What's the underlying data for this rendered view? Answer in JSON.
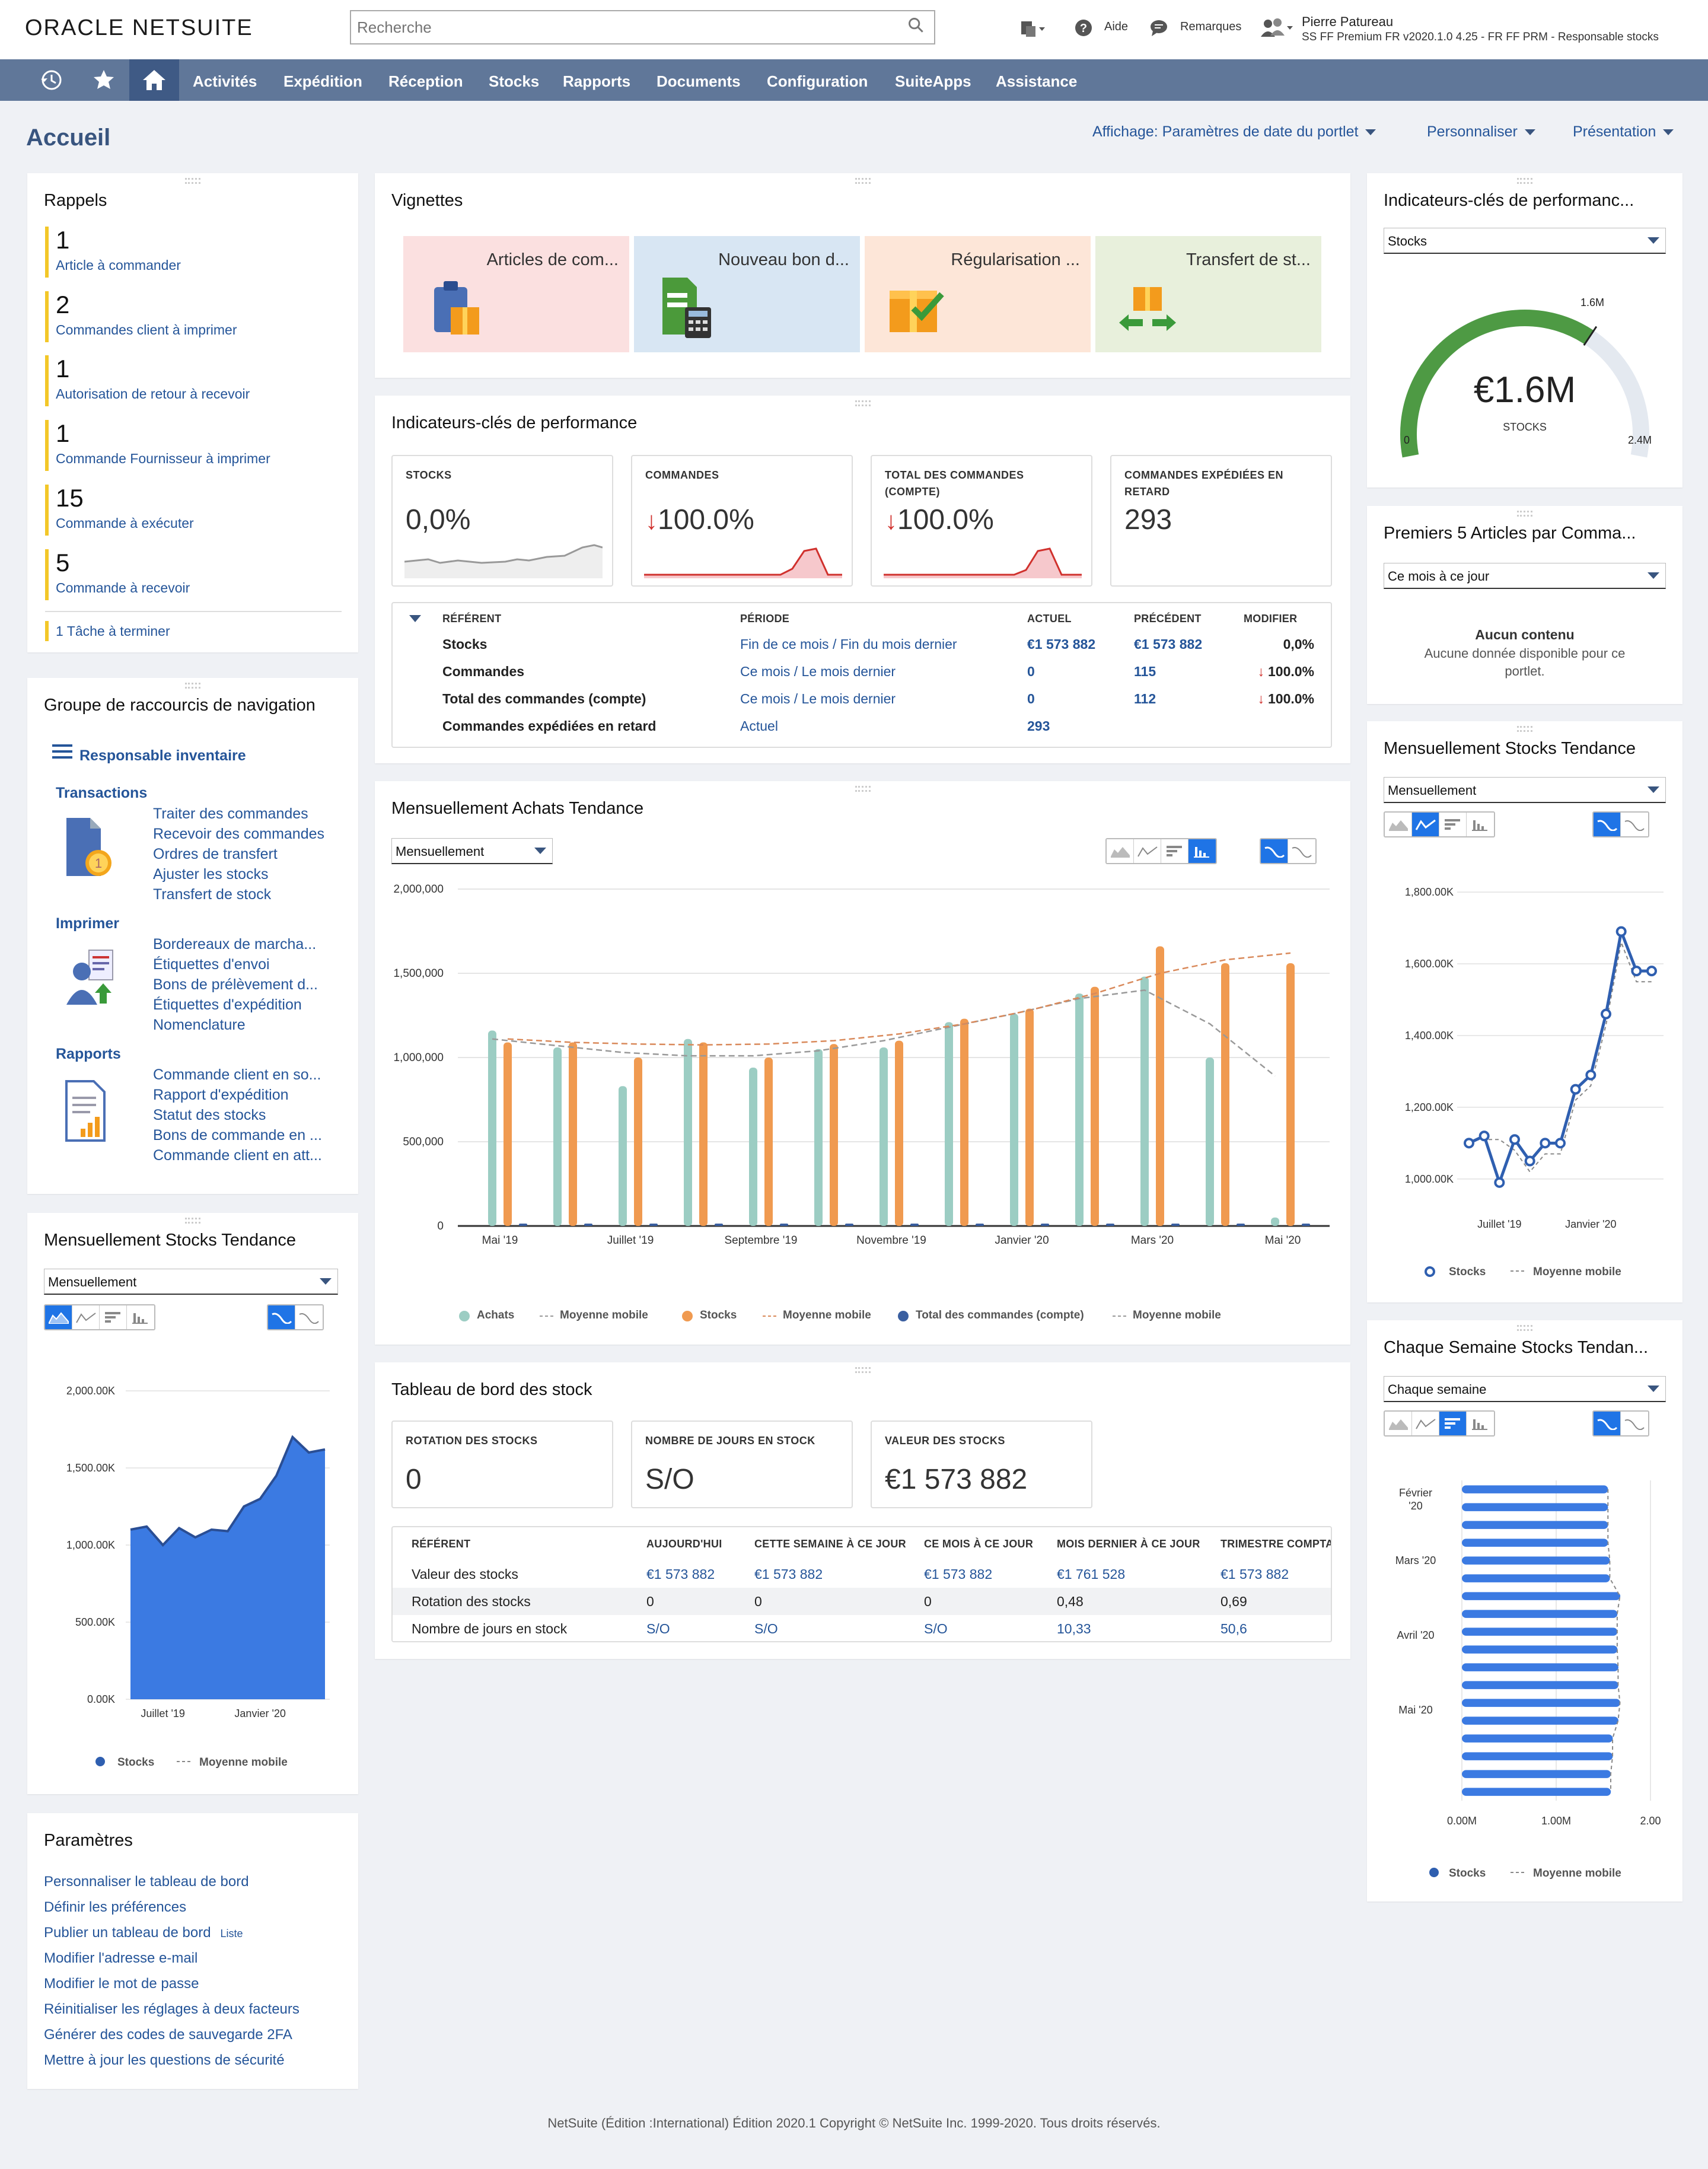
{
  "header": {
    "logo": "ORACLE NETSUITE",
    "search_placeholder": "Recherche",
    "help": "Aide",
    "feedback": "Remarques",
    "user_name": "Pierre Patureau",
    "user_role": "SS FF Premium FR v2020.1.0 4.25 - FR FF PRM - Responsable stocks"
  },
  "nav": {
    "items": [
      "Activités",
      "Expédition",
      "Réception",
      "Stocks",
      "Rapports",
      "Documents",
      "Configuration",
      "SuiteApps",
      "Assistance"
    ]
  },
  "page": {
    "title": "Accueil",
    "menu_date": "Affichage: Paramètres de date du portlet",
    "menu_customize": "Personnaliser",
    "menu_layout": "Présentation"
  },
  "reminders": {
    "title": "Rappels",
    "items": [
      {
        "num": "1",
        "label": "Article à commander"
      },
      {
        "num": "2",
        "label": "Commandes client à imprimer"
      },
      {
        "num": "1",
        "label": "Autorisation de retour à recevoir"
      },
      {
        "num": "1",
        "label": "Commande Fournisseur à imprimer"
      },
      {
        "num": "15",
        "label": "Commande à exécuter"
      },
      {
        "num": "5",
        "label": "Commande à recevoir"
      }
    ],
    "task": "1  Tâche à terminer"
  },
  "shortcuts": {
    "title": "Groupe de raccourcis de navigation",
    "role": "Responsable inventaire",
    "sections": [
      {
        "name": "Transactions",
        "links": [
          "Traiter des commandes",
          "Recevoir des commandes",
          "Ordres de transfert",
          "Ajuster les stocks",
          "Transfert de stock"
        ]
      },
      {
        "name": "Imprimer",
        "links": [
          "Bordereaux de marcha...",
          "Étiquettes d'envoi",
          "Bons de prélèvement d...",
          "Étiquettes d'expédition",
          "Nomenclature"
        ]
      },
      {
        "name": "Rapports",
        "links": [
          "Commande client en so...",
          "Rapport d'expédition",
          "Statut des stocks",
          "Bons de commande en ...",
          "Commande client en att..."
        ]
      }
    ]
  },
  "left_stock_trend": {
    "title": "Mensuellement Stocks Tendance",
    "select": "Mensuellement",
    "legend_a": "Stocks",
    "legend_b": "Moyenne mobile",
    "y_ticks": [
      "2,000.00K",
      "1,500.00K",
      "1,000.00K",
      "500.00K",
      "0.00K"
    ],
    "x_ticks": [
      "Juillet '19",
      "Janvier '20"
    ],
    "values": [
      1100,
      1120,
      1000,
      1110,
      1050,
      1100,
      1090,
      1250,
      1300,
      1450,
      1700,
      1600,
      1620
    ],
    "ymax": 2000
  },
  "params": {
    "title": "Paramètres",
    "links": [
      "Personnaliser le tableau de bord",
      "Définir les préférences",
      "Publier un tableau de bord",
      "Modifier l'adresse e-mail",
      "Modifier le mot de passe",
      "Réinitialiser les réglages à deux facteurs",
      "Générer des codes de sauvegarde 2FA",
      "Mettre à jour les questions de sécurité"
    ],
    "liste": "Liste"
  },
  "tiles": {
    "title": "Vignettes",
    "items": [
      {
        "label": "Articles de com...",
        "bg": "#fbe0e0"
      },
      {
        "label": "Nouveau bon d...",
        "bg": "#d8e6f3"
      },
      {
        "label": "Régularisation ...",
        "bg": "#fde6d8"
      },
      {
        "label": "Transfert de st...",
        "bg": "#e8f0dc"
      }
    ]
  },
  "kpi": {
    "title": "Indicateurs-clés de performance",
    "boxes": [
      {
        "label1": "STOCKS",
        "label2": "",
        "value": "0,0%",
        "arrow": ""
      },
      {
        "label1": "COMMANDES",
        "label2": "",
        "value": "100.0%",
        "arrow": "↓"
      },
      {
        "label1": "TOTAL DES COMMANDES",
        "label2": "(COMPTE)",
        "value": "100.0%",
        "arrow": "↓"
      },
      {
        "label1": "COMMANDES EXPÉDIÉES EN",
        "label2": "RETARD",
        "value": "293",
        "arrow": ""
      }
    ],
    "headers": [
      "RÉFÉRENT",
      "PÉRIODE",
      "ACTUEL",
      "PRÉCÉDENT",
      "MODIFIER"
    ],
    "rows": [
      {
        "ref": "Stocks",
        "period": "Fin de ce mois / Fin du mois dernier",
        "actual": "€1 573 882",
        "prev": "€1 573 882",
        "change": "0,0%",
        "arrow": ""
      },
      {
        "ref": "Commandes",
        "period": "Ce mois / Le mois dernier",
        "actual": "0",
        "prev": "115",
        "change": "100.0%",
        "arrow": "↓"
      },
      {
        "ref": "Total des commandes (compte)",
        "period": "Ce mois / Le mois dernier",
        "actual": "0",
        "prev": "112",
        "change": "100.0%",
        "arrow": "↓"
      },
      {
        "ref": "Commandes expédiées en retard",
        "period": "Actuel",
        "actual": "293",
        "prev": "",
        "change": "",
        "arrow": ""
      }
    ]
  },
  "purchases": {
    "title": "Mensuellement Achats Tendance",
    "select": "Mensuellement",
    "chart_data": {
      "type": "bar",
      "categories": [
        "Mai '19",
        "Juin '19",
        "Juillet '19",
        "Août '19",
        "Septembre '19",
        "Octobre '19",
        "Novembre '19",
        "Décembre '19",
        "Janvier '20",
        "Février '20",
        "Mars '20",
        "Avril '20",
        "Mai '20"
      ],
      "x_tick_labels": [
        "Mai '19",
        "Juillet '19",
        "Septembre '19",
        "Novembre '19",
        "Janvier '20",
        "Mars '20",
        "Mai '20"
      ],
      "y_ticks": [
        "2,000,000",
        "1,500,000",
        "1,000,000",
        "500,000",
        "0"
      ],
      "ylim": [
        0,
        2000000
      ],
      "series": [
        {
          "name": "Achats",
          "color": "#9ccdc3",
          "values": [
            1160000,
            1060000,
            830000,
            1110000,
            940000,
            1050000,
            1060000,
            1210000,
            1260000,
            1380000,
            1480000,
            1000000,
            50000
          ]
        },
        {
          "name": "Stocks",
          "color": "#f09a50",
          "values": [
            1090000,
            1090000,
            1000000,
            1090000,
            1000000,
            1080000,
            1100000,
            1230000,
            1290000,
            1420000,
            1660000,
            1560000,
            1560000
          ]
        },
        {
          "name": "Total des commandes (compte)",
          "color": "#3a5fa0",
          "values": [
            0,
            0,
            0,
            0,
            0,
            0,
            0,
            0,
            0,
            0,
            0,
            0,
            0
          ]
        }
      ],
      "ma_stocks": [
        1110000,
        1090000,
        1080000,
        1075000,
        1080000,
        1100000,
        1140000,
        1200000,
        1280000,
        1380000,
        1500000,
        1580000,
        1620000
      ],
      "ma_achats": [
        1110000,
        1070000,
        1030000,
        1010000,
        1010000,
        1040000,
        1100000,
        1180000,
        1260000,
        1350000,
        1400000,
        1200000,
        890000
      ],
      "legend": [
        "Achats",
        "Moyenne mobile",
        "Stocks",
        "Moyenne mobile",
        "Total des commandes (compte)",
        "Moyenne mobile"
      ]
    }
  },
  "stock_board": {
    "title": "Tableau de bord des stock",
    "boxes": [
      {
        "label": "ROTATION DES STOCKS",
        "value": "0"
      },
      {
        "label": "NOMBRE DE JOURS EN STOCK",
        "value": "S/O"
      },
      {
        "label": "VALEUR DES STOCKS",
        "value": "€1 573 882"
      }
    ],
    "headers": [
      "RÉFÉRENT",
      "AUJOURD'HUI",
      "CETTE SEMAINE À CE JOUR",
      "CE MOIS À CE JOUR",
      "MOIS DERNIER À CE JOUR",
      "TRIMESTRE COMPTAB"
    ],
    "rows": [
      [
        "Valeur des stocks",
        "€1 573 882",
        "€1 573 882",
        "€1 573 882",
        "€1 761 528",
        "€1 573 882"
      ],
      [
        "Rotation des stocks",
        "0",
        "0",
        "0",
        "0,48",
        "0,69"
      ],
      [
        "Nombre de jours en stock",
        "S/O",
        "S/O",
        "S/O",
        "10,33",
        "50,6"
      ]
    ]
  },
  "kpi_gauge": {
    "title": "Indicateurs-clés de performanc...",
    "select": "Stocks",
    "value_text": "€1.6M",
    "caption": "STOCKS",
    "min": "0",
    "max": "2.4M",
    "mark": "1.6M",
    "fraction": 0.667
  },
  "top5": {
    "title": "Premiers 5 Articles par Comma...",
    "select": "Ce mois à ce jour",
    "empty_title": "Aucun contenu",
    "empty_text1": "Aucune donnée disponible pour ce",
    "empty_text2": "portlet."
  },
  "right_stock_trend": {
    "title": "Mensuellement Stocks Tendance",
    "select": "Mensuellement",
    "y_ticks": [
      "1,800.00K",
      "1,600.00K",
      "1,400.00K",
      "1,200.00K",
      "1,000.00K"
    ],
    "x_ticks": [
      "Juillet '19",
      "Janvier '20"
    ],
    "values": [
      1100,
      1120,
      990,
      1110,
      1050,
      1100,
      1100,
      1250,
      1290,
      1460,
      1690,
      1580,
      1580
    ],
    "ymin": 950,
    "ymax": 1830,
    "legend_a": "Stocks",
    "legend_b": "Moyenne mobile"
  },
  "weekly": {
    "title": "Chaque Semaine Stocks Tendan...",
    "select": "Chaque semaine",
    "y_labels": [
      "Février '20",
      "Mars '20",
      "Avril '20",
      "Mai '20"
    ],
    "x_ticks": [
      "0.00M",
      "1.00M",
      "2.00"
    ],
    "values": [
      1.55,
      1.55,
      1.55,
      1.55,
      1.57,
      1.57,
      1.68,
      1.65,
      1.65,
      1.65,
      1.66,
      1.66,
      1.68,
      1.66,
      1.6,
      1.6,
      1.58,
      1.58
    ],
    "xmax": 2.0,
    "legend_a": "Stocks",
    "legend_b": "Moyenne mobile"
  },
  "footer": "NetSuite (Édition :International) Édition 2020.1 Copyright © NetSuite Inc. 1999-2020. Tous droits réservés.",
  "colors": {
    "nav": "#607799",
    "accent": "#255599",
    "reminder_bar": "#f3c728",
    "chart_blue": "#2f5fb0"
  }
}
